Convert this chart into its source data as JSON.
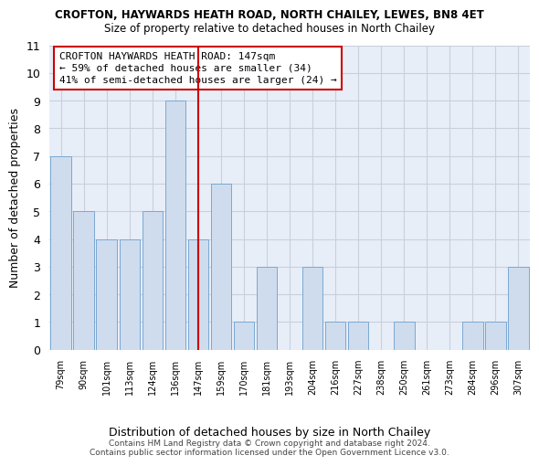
{
  "title1": "CROFTON, HAYWARDS HEATH ROAD, NORTH CHAILEY, LEWES, BN8 4ET",
  "title2": "Size of property relative to detached houses in North Chailey",
  "xlabel": "Distribution of detached houses by size in North Chailey",
  "ylabel": "Number of detached properties",
  "categories": [
    "79sqm",
    "90sqm",
    "101sqm",
    "113sqm",
    "124sqm",
    "136sqm",
    "147sqm",
    "159sqm",
    "170sqm",
    "181sqm",
    "193sqm",
    "204sqm",
    "216sqm",
    "227sqm",
    "238sqm",
    "250sqm",
    "261sqm",
    "273sqm",
    "284sqm",
    "296sqm",
    "307sqm"
  ],
  "values": [
    7,
    5,
    4,
    4,
    5,
    9,
    4,
    6,
    1,
    3,
    0,
    3,
    1,
    1,
    0,
    1,
    0,
    0,
    1,
    1,
    3
  ],
  "highlight_index": 6,
  "bar_color": "#cfdcee",
  "bar_edge_color": "#7aa8d2",
  "highlight_line_color": "#cc0000",
  "annotation_text": "CROFTON HAYWARDS HEATH ROAD: 147sqm\n← 59% of detached houses are smaller (34)\n41% of semi-detached houses are larger (24) →",
  "annotation_box_color": "#ffffff",
  "annotation_box_edge_color": "#cc0000",
  "ylim": [
    0,
    11
  ],
  "yticks": [
    0,
    1,
    2,
    3,
    4,
    5,
    6,
    7,
    8,
    9,
    10,
    11
  ],
  "footer1": "Contains HM Land Registry data © Crown copyright and database right 2024.",
  "footer2": "Contains public sector information licensed under the Open Government Licence v3.0.",
  "bg_color": "#ffffff",
  "plot_bg_color": "#e8eef8",
  "grid_color": "#c8d0dc"
}
